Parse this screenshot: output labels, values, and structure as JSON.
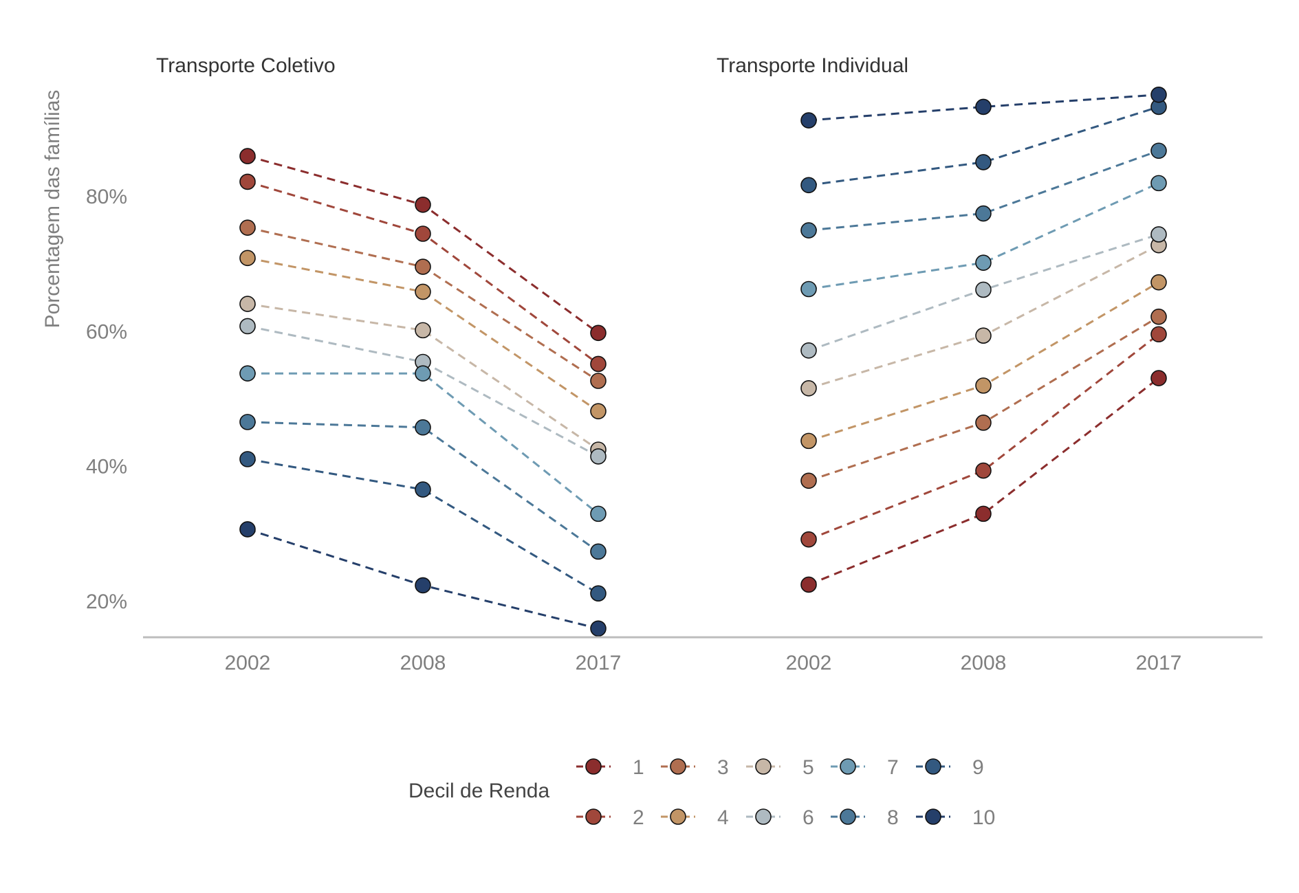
{
  "chart_data": {
    "type": "line",
    "ylabel": "Porcentagem das famílias",
    "xlabel": "",
    "ylim": [
      15,
      95
    ],
    "yticks": [
      "20%",
      "40%",
      "60%",
      "80%"
    ],
    "grid": false,
    "legend": {
      "title": "Decil de Renda",
      "placement": "bottom",
      "entries": [
        "1",
        "2",
        "3",
        "4",
        "5",
        "6",
        "7",
        "8",
        "9",
        "10"
      ],
      "colors": [
        "#8B2D2D",
        "#A0473B",
        "#B06E50",
        "#C29566",
        "#C7B7A7",
        "#AEBAC1",
        "#6E9BB3",
        "#4C7898",
        "#335980",
        "#253F6A"
      ]
    },
    "panels": [
      {
        "title": "Transporte Coletivo",
        "x": [
          "2002",
          "2008",
          "2017"
        ],
        "series": [
          {
            "name": "1",
            "values": [
              86.0,
              78.8,
              59.8
            ]
          },
          {
            "name": "2",
            "values": [
              82.2,
              74.5,
              55.2
            ]
          },
          {
            "name": "3",
            "values": [
              75.4,
              69.6,
              52.7
            ]
          },
          {
            "name": "4",
            "values": [
              70.9,
              65.9,
              48.2
            ]
          },
          {
            "name": "5",
            "values": [
              64.1,
              60.2,
              42.5
            ]
          },
          {
            "name": "6",
            "values": [
              60.8,
              55.5,
              41.5
            ]
          },
          {
            "name": "7",
            "values": [
              53.8,
              53.8,
              33.0
            ]
          },
          {
            "name": "8",
            "values": [
              46.6,
              45.8,
              27.4
            ]
          },
          {
            "name": "9",
            "values": [
              41.1,
              36.6,
              21.2
            ]
          },
          {
            "name": "10",
            "values": [
              30.7,
              22.4,
              16.0
            ]
          }
        ]
      },
      {
        "title": "Transporte Individual",
        "x": [
          "2002",
          "2008",
          "2017"
        ],
        "series": [
          {
            "name": "1",
            "values": [
              22.5,
              33.0,
              53.1
            ]
          },
          {
            "name": "2",
            "values": [
              29.2,
              39.4,
              59.6
            ]
          },
          {
            "name": "3",
            "values": [
              37.9,
              46.5,
              62.2
            ]
          },
          {
            "name": "4",
            "values": [
              43.8,
              52.0,
              67.3
            ]
          },
          {
            "name": "5",
            "values": [
              51.6,
              59.4,
              72.8
            ]
          },
          {
            "name": "6",
            "values": [
              57.2,
              66.2,
              74.4
            ]
          },
          {
            "name": "7",
            "values": [
              66.3,
              70.2,
              82.0
            ]
          },
          {
            "name": "8",
            "values": [
              75.0,
              77.5,
              86.8
            ]
          },
          {
            "name": "9",
            "values": [
              81.7,
              85.1,
              93.3
            ]
          },
          {
            "name": "10",
            "values": [
              91.3,
              93.3,
              95.1
            ]
          }
        ]
      }
    ]
  }
}
